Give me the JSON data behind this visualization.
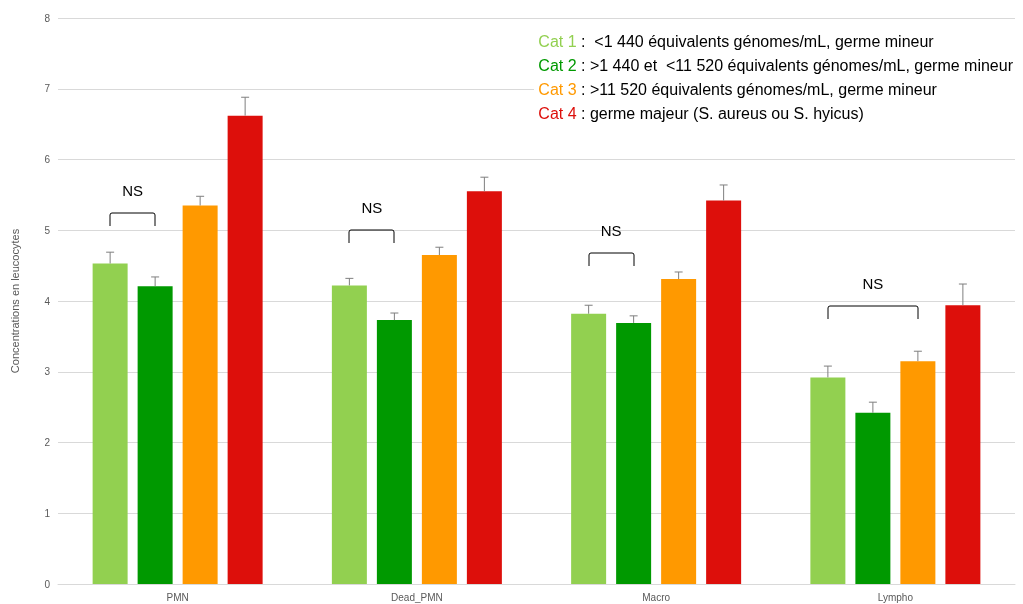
{
  "chart_data": {
    "type": "bar",
    "ylabel": "Concentrations en leucocytes",
    "categories": [
      "PMN",
      "Dead_PMN",
      "Macro",
      "Lympho"
    ],
    "series": [
      {
        "name": "Cat 1",
        "color": "#92d050",
        "values": [
          4.53,
          4.22,
          3.82,
          2.92
        ],
        "errors": [
          [
            4.53,
            4.69
          ],
          [
            4.22,
            4.32
          ],
          [
            3.82,
            3.94
          ],
          [
            2.92,
            3.08
          ]
        ]
      },
      {
        "name": "Cat 2",
        "color": "#009900",
        "values": [
          4.21,
          3.73,
          3.69,
          2.42
        ],
        "errors": [
          [
            4.21,
            4.34
          ],
          [
            3.73,
            3.83
          ],
          [
            3.69,
            3.79
          ],
          [
            2.42,
            2.57
          ]
        ]
      },
      {
        "name": "Cat 3",
        "color": "#ff9900",
        "values": [
          5.35,
          4.65,
          4.31,
          3.15
        ],
        "errors": [
          [
            5.35,
            5.48
          ],
          [
            4.65,
            4.76
          ],
          [
            4.31,
            4.41
          ],
          [
            3.15,
            3.29
          ]
        ]
      },
      {
        "name": "Cat 4",
        "color": "#dd0f0b",
        "values": [
          6.62,
          5.55,
          5.42,
          3.94
        ],
        "errors": [
          [
            6.62,
            6.88
          ],
          [
            5.55,
            5.75
          ],
          [
            5.42,
            5.64
          ],
          [
            3.94,
            4.24
          ]
        ]
      }
    ],
    "annotations": [
      " :  <1 440 équivalents génomes/mL, germe mineur",
      " : >1 440 et  <11 520 équivalents génomes/mL, germe mineur",
      " : >11 520 équivalents génomes/mL, germe mineur",
      " : germe majeur (S. aureus ou S. hyicus)",
      "NS",
      "NS",
      "NS",
      "NS"
    ],
    "ylim": [
      0,
      8
    ],
    "yticks": [
      0,
      1,
      2,
      3,
      4,
      5,
      6,
      7,
      8
    ],
    "grid": "y",
    "legend": "top right"
  }
}
